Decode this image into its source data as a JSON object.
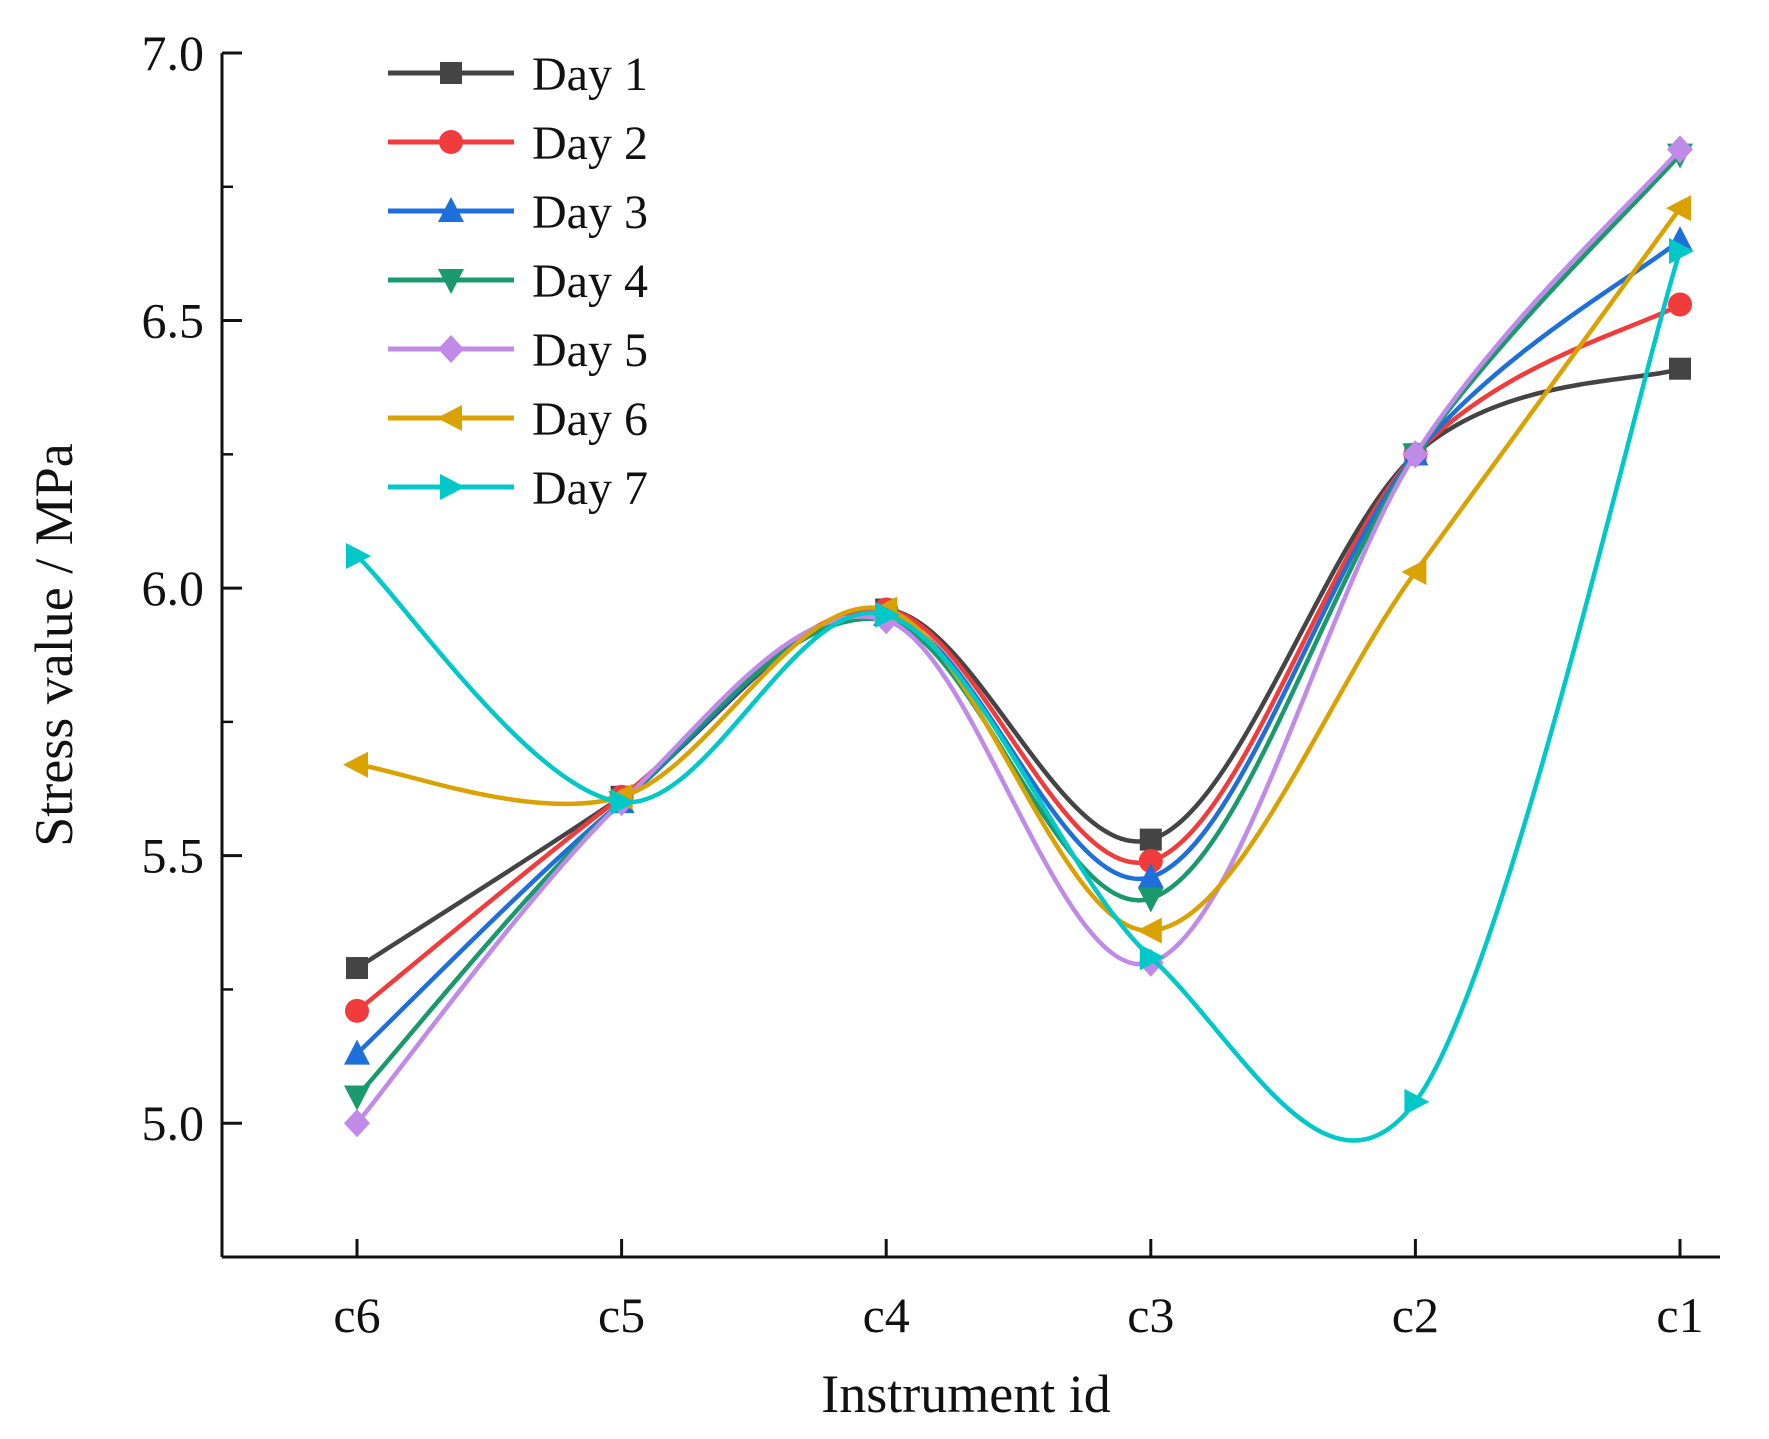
{
  "chart_data": {
    "type": "line",
    "title": "",
    "xlabel": "Instrument id",
    "ylabel": "Stress value / MPa",
    "categories": [
      "c6",
      "c5",
      "c4",
      "c3",
      "c2",
      "c1"
    ],
    "ylim": [
      4.75,
      7.0
    ],
    "yticks": [
      "5.0",
      "5.5",
      "6.0",
      "6.5",
      "7.0"
    ],
    "smooth": true,
    "grid": false,
    "legend_position": "top-left",
    "series": [
      {
        "name": "Day 1",
        "color": "#444444",
        "marker": "square",
        "values": [
          5.29,
          5.61,
          5.96,
          5.53,
          6.25,
          6.41
        ]
      },
      {
        "name": "Day 2",
        "color": "#F03C3C",
        "marker": "circle",
        "values": [
          5.21,
          5.61,
          5.96,
          5.49,
          6.25,
          6.53
        ]
      },
      {
        "name": "Day 3",
        "color": "#1E6FD9",
        "marker": "triangle-up",
        "values": [
          5.13,
          5.6,
          5.95,
          5.46,
          6.25,
          6.65
        ]
      },
      {
        "name": "Day 4",
        "color": "#1A9A6C",
        "marker": "triangle-down",
        "values": [
          5.05,
          5.6,
          5.94,
          5.42,
          6.25,
          6.81
        ]
      },
      {
        "name": "Day 5",
        "color": "#C08AE8",
        "marker": "diamond",
        "values": [
          5.0,
          5.6,
          5.94,
          5.3,
          6.25,
          6.82
        ]
      },
      {
        "name": "Day 6",
        "color": "#D9A200",
        "marker": "triangle-left",
        "values": [
          5.67,
          5.61,
          5.96,
          5.36,
          6.03,
          6.71
        ]
      },
      {
        "name": "Day 7",
        "color": "#00C8C8",
        "marker": "triangle-right",
        "values": [
          6.06,
          5.6,
          5.95,
          5.31,
          5.04,
          6.63
        ]
      }
    ]
  }
}
